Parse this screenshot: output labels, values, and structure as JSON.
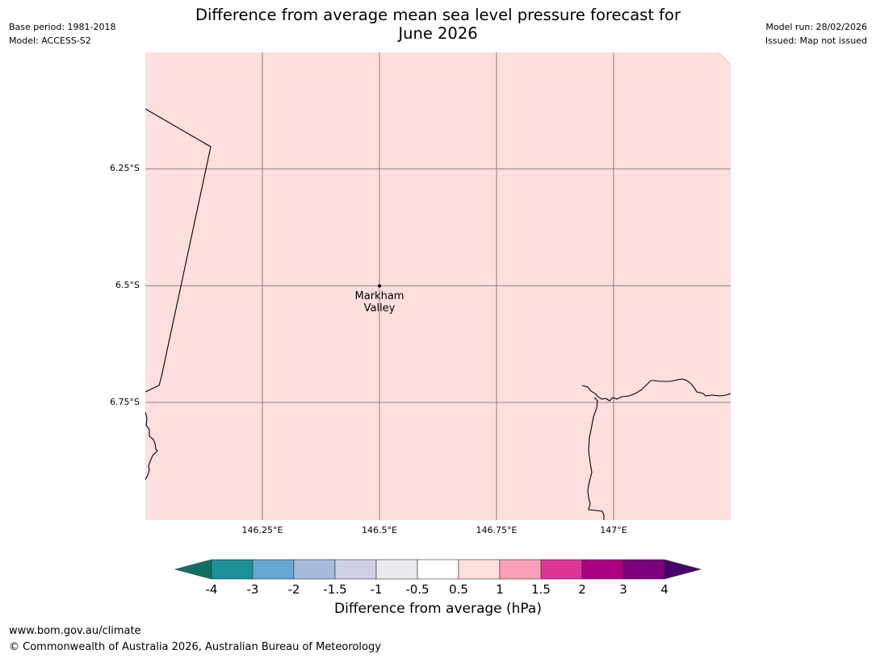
{
  "header": {
    "base_period": "Base period: 1981-2018",
    "model": "Model: ACCESS-S2",
    "model_run": "Model run: 28/02/2026",
    "issued": "Issued: Map not issued",
    "title_line1": "Difference from average mean sea level pressure forecast for",
    "title_line2": "June 2026"
  },
  "map": {
    "fill_color": "#fddfdd",
    "lat_labels": [
      "6.25°S",
      "6.5°S",
      "6.75°S"
    ],
    "lon_labels": [
      "146.25°E",
      "146.5°E",
      "146.75°E",
      "147°E"
    ],
    "place": {
      "name_line1": "Markham",
      "name_line2": "Valley"
    }
  },
  "colorbar": {
    "colors": [
      "#0e7065",
      "#1b9197",
      "#66a8cf",
      "#a7bcdc",
      "#cfd0e7",
      "#ebeaef",
      "#ffffff",
      "#fddfdd",
      "#f9a0b7",
      "#dc3497",
      "#ac0082",
      "#7b007a",
      "#4a006a"
    ],
    "ticks": [
      "-4",
      "-3",
      "-2",
      "-1.5",
      "-1",
      "-0.5",
      "0.5",
      "1",
      "1.5",
      "2",
      "3",
      "4"
    ],
    "label": "Difference from average (hPa)"
  },
  "footer": {
    "url": "www.bom.gov.au/climate",
    "copyright": "© Commonwealth of Australia 2026, Australian Bureau of Meteorology"
  }
}
